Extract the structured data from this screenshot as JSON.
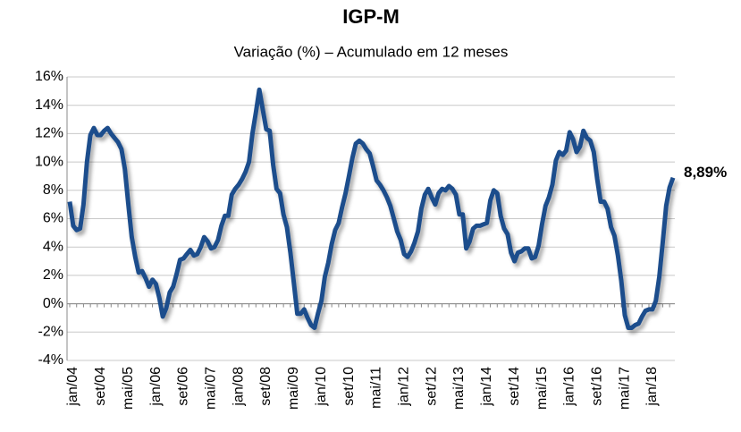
{
  "chart_data": {
    "type": "line",
    "title": "IGP-M",
    "subtitle": "Variação (%) – Acumulado em 12 meses",
    "categories": [
      "jan/04",
      null,
      null,
      null,
      null,
      null,
      null,
      null,
      "set/04",
      null,
      null,
      null,
      null,
      null,
      null,
      null,
      "mai/05",
      null,
      null,
      null,
      null,
      null,
      null,
      null,
      "jan/06",
      null,
      null,
      null,
      null,
      null,
      null,
      null,
      "set/06",
      null,
      null,
      null,
      null,
      null,
      null,
      null,
      "mai/07",
      null,
      null,
      null,
      null,
      null,
      null,
      null,
      "jan/08",
      null,
      null,
      null,
      null,
      null,
      null,
      null,
      "set/08",
      null,
      null,
      null,
      null,
      null,
      null,
      null,
      "mai/09",
      null,
      null,
      null,
      null,
      null,
      null,
      null,
      "jan/10",
      null,
      null,
      null,
      null,
      null,
      null,
      null,
      "set/10",
      null,
      null,
      null,
      null,
      null,
      null,
      null,
      "mai/11",
      null,
      null,
      null,
      null,
      null,
      null,
      null,
      "jan/12",
      null,
      null,
      null,
      null,
      null,
      null,
      null,
      "set/12",
      null,
      null,
      null,
      null,
      null,
      null,
      null,
      "mai/13",
      null,
      null,
      null,
      null,
      null,
      null,
      null,
      "jan/14",
      null,
      null,
      null,
      null,
      null,
      null,
      null,
      "set/14",
      null,
      null,
      null,
      null,
      null,
      null,
      null,
      "mai/15",
      null,
      null,
      null,
      null,
      null,
      null,
      null,
      "jan/16",
      null,
      null,
      null,
      null,
      null,
      null,
      null,
      "set/16",
      null,
      null,
      null,
      null,
      null,
      null,
      null,
      "mai/17",
      null,
      null,
      null,
      null,
      null,
      null,
      null,
      "jan/18",
      null,
      null,
      null,
      null,
      null,
      null,
      null
    ],
    "values": [
      7.2,
      5.5,
      5.2,
      5.3,
      7.0,
      10.0,
      11.9,
      12.4,
      11.9,
      11.9,
      12.2,
      12.4,
      12.0,
      11.7,
      11.4,
      10.9,
      9.5,
      7.0,
      4.7,
      3.3,
      2.2,
      2.3,
      1.8,
      1.2,
      1.7,
      1.4,
      0.4,
      -0.9,
      -0.3,
      0.8,
      1.2,
      2.1,
      3.1,
      3.2,
      3.5,
      3.8,
      3.4,
      3.5,
      4.0,
      4.7,
      4.4,
      3.9,
      4.0,
      4.5,
      5.5,
      6.2,
      6.2,
      7.7,
      8.1,
      8.4,
      8.8,
      9.3,
      10.0,
      12.0,
      13.5,
      15.1,
      13.7,
      12.3,
      12.2,
      9.8,
      8.1,
      7.8,
      6.3,
      5.4,
      3.6,
      1.5,
      -0.7,
      -0.7,
      -0.4,
      -1.0,
      -1.5,
      -1.7,
      -0.7,
      0.2,
      1.9,
      2.9,
      4.2,
      5.2,
      5.7,
      6.8,
      7.8,
      9.0,
      10.3,
      11.3,
      11.5,
      11.3,
      10.9,
      10.6,
      9.7,
      8.7,
      8.4,
      8.0,
      7.5,
      6.9,
      6.0,
      5.1,
      4.5,
      3.5,
      3.3,
      3.7,
      4.3,
      5.1,
      6.7,
      7.7,
      8.1,
      7.5,
      7.0,
      7.8,
      8.1,
      8.0,
      8.3,
      8.1,
      7.7,
      6.3,
      6.3,
      3.9,
      4.4,
      5.3,
      5.5,
      5.5,
      5.6,
      5.7,
      7.3,
      8.0,
      7.8,
      6.2,
      5.3,
      4.9,
      3.6,
      3.0,
      3.6,
      3.7,
      3.9,
      3.9,
      3.2,
      3.3,
      4.1,
      5.6,
      6.9,
      7.5,
      8.4,
      10.1,
      10.7,
      10.5,
      10.8,
      12.1,
      11.6,
      10.7,
      11.1,
      12.2,
      11.7,
      11.5,
      10.7,
      8.8,
      7.2,
      7.2,
      6.7,
      5.4,
      4.8,
      3.4,
      1.6,
      -0.8,
      -1.7,
      -1.7,
      -1.5,
      -1.4,
      -0.9,
      -0.5,
      -0.4,
      -0.4,
      0.2,
      1.9,
      4.3,
      6.9,
      8.2,
      8.89
    ],
    "annotation": "8,89%",
    "color": "#1f4e8c",
    "ylim": [
      -4,
      16
    ],
    "yticks": [
      {
        "value": -4,
        "label": "-4%"
      },
      {
        "value": -2,
        "label": "-2%"
      },
      {
        "value": 0,
        "label": "0%"
      },
      {
        "value": 2,
        "label": "2%"
      },
      {
        "value": 4,
        "label": "4%"
      },
      {
        "value": 6,
        "label": "6%"
      },
      {
        "value": 8,
        "label": "8%"
      },
      {
        "value": 10,
        "label": "10%"
      },
      {
        "value": 12,
        "label": "12%"
      },
      {
        "value": 14,
        "label": "14%"
      },
      {
        "value": 16,
        "label": "16%"
      }
    ],
    "grid": true
  }
}
